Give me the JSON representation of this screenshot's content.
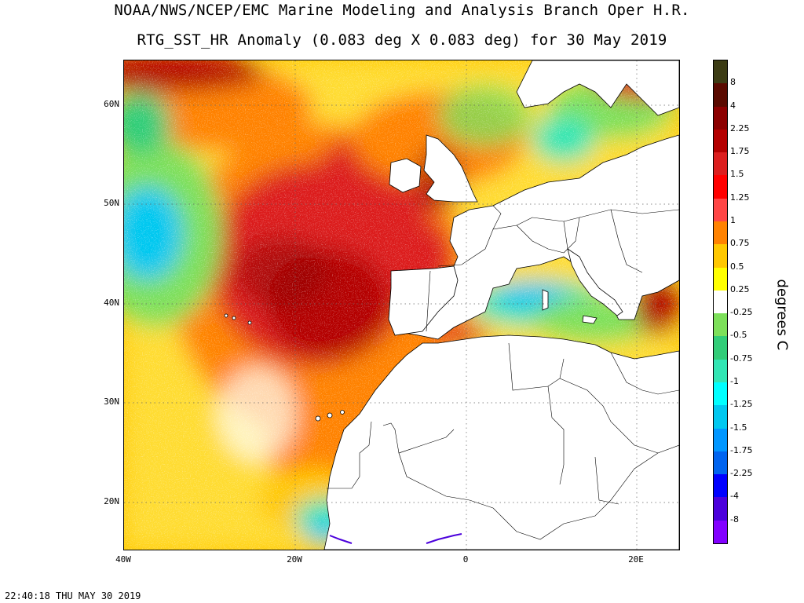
{
  "header": {
    "title_line1": "NOAA/NWS/NCEP/EMC Marine Modeling and Analysis Branch Oper H.R.",
    "title_line2": "RTG_SST_HR Anomaly (0.083 deg X 0.083 deg) for 30 May 2019"
  },
  "map": {
    "lon_range": [
      -40,
      25
    ],
    "lat_range": [
      15,
      65
    ],
    "lat_labels": [
      "60N",
      "50N",
      "40N",
      "30N",
      "20N"
    ],
    "lon_labels": [
      "40W",
      "20W",
      "0",
      "20E"
    ]
  },
  "colorbar": {
    "units": "degrees C",
    "labels": [
      "8",
      "4",
      "2.25",
      "1.75",
      "1.5",
      "1.25",
      "1",
      "0.75",
      "0.5",
      "0.25",
      "-0.25",
      "-0.5",
      "-0.75",
      "-1",
      "-1.25",
      "-1.5",
      "-1.75",
      "-2.25",
      "-4",
      "-8"
    ],
    "colors": [
      "#3c3c14",
      "#5a0a00",
      "#8c0000",
      "#b40000",
      "#dc1e1e",
      "#ff0000",
      "#ff4646",
      "#ff8200",
      "#ffc800",
      "#ffff00",
      "#ffffff",
      "#7de05a",
      "#32cd78",
      "#32e6b4",
      "#00ffff",
      "#00c8f0",
      "#0096ff",
      "#0064f0",
      "#0000ff",
      "#4b00dc",
      "#8200ff"
    ]
  },
  "footer": {
    "timestamp": "22:40:18  THU MAY 30 2019"
  }
}
